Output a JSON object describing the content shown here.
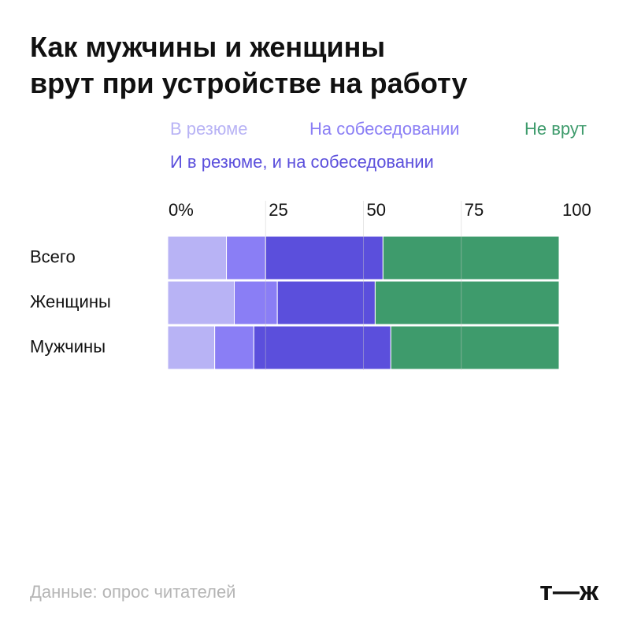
{
  "chart_data": {
    "type": "stacked-barh",
    "title": "Как мужчины и женщины\nврут при устройстве на работу",
    "categories": [
      "Всего",
      "Женщины",
      "Мужчины"
    ],
    "series": [
      {
        "name": "В резюме",
        "color": "#b8b3f5",
        "values": [
          15,
          17,
          12
        ]
      },
      {
        "name": "На собеседовании",
        "color": "#8a7ef5",
        "values": [
          10,
          11,
          10
        ]
      },
      {
        "name": "И в резюме, и на собеседовании",
        "color": "#5b4fdc",
        "values": [
          30,
          25,
          35
        ]
      },
      {
        "name": "Не врут",
        "color": "#3e9b6c",
        "values": [
          45,
          47,
          43
        ]
      }
    ],
    "xlim": [
      0,
      100
    ],
    "xticks": [
      {
        "value": 0,
        "label": "0%"
      },
      25,
      50,
      75,
      100
    ],
    "grid": true,
    "source": "Данные: опрос читателей",
    "logo": "т—ж"
  }
}
